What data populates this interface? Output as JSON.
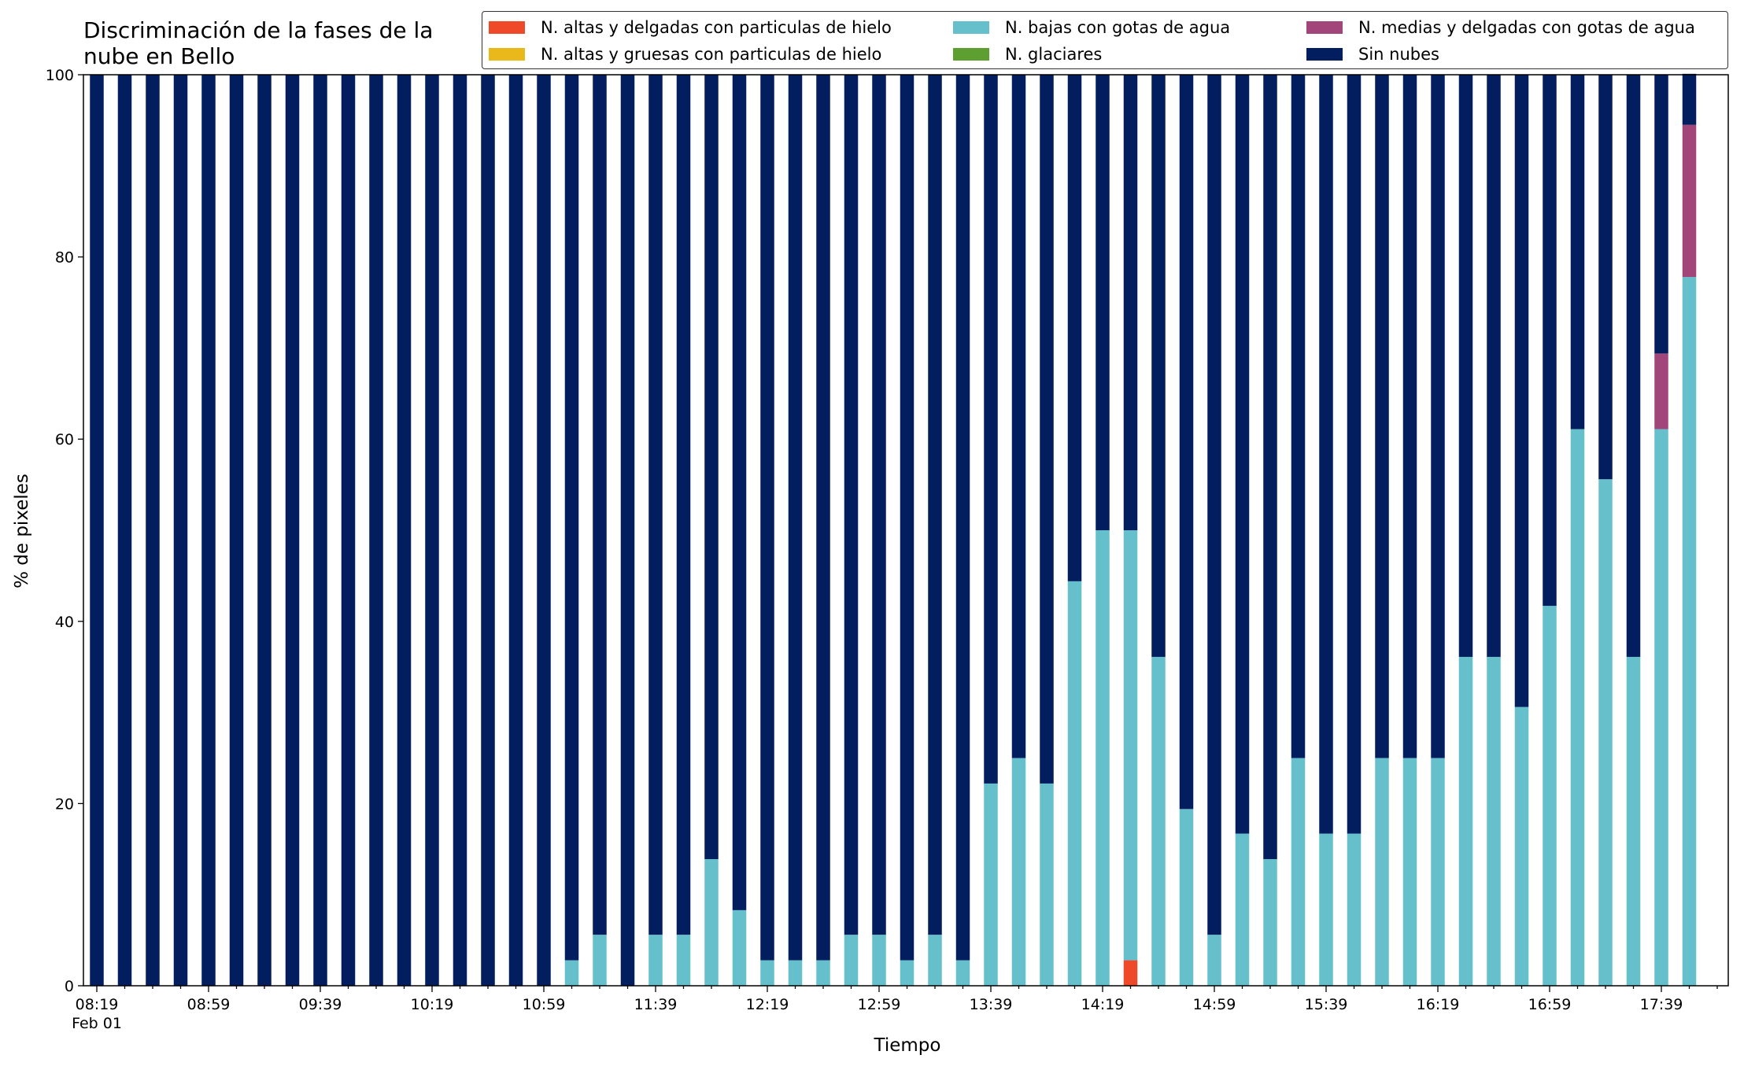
{
  "chart_data": {
    "type": "bar",
    "stacked": true,
    "title": "Discriminación de la fases de la nube en Bello",
    "xlabel": "Tiempo",
    "ylabel": "% de pixeles",
    "ylim": [
      0,
      100
    ],
    "yticks": [
      0,
      20,
      40,
      60,
      80,
      100
    ],
    "xticks": [
      "08:19",
      "08:59",
      "09:39",
      "10:19",
      "10:59",
      "11:39",
      "12:19",
      "12:59",
      "13:39",
      "14:19",
      "14:59",
      "15:39",
      "16:19",
      "16:59",
      "17:39"
    ],
    "date_label": "Feb 01",
    "legend_position": "top-right",
    "grid": false,
    "categories": [
      "08:19",
      "08:29",
      "08:39",
      "08:49",
      "08:59",
      "09:09",
      "09:19",
      "09:29",
      "09:39",
      "09:49",
      "09:59",
      "10:09",
      "10:19",
      "10:29",
      "10:39",
      "10:49",
      "10:59",
      "11:09",
      "11:19",
      "11:29",
      "11:39",
      "11:49",
      "11:59",
      "12:09",
      "12:19",
      "12:29",
      "12:39",
      "12:49",
      "12:59",
      "13:09",
      "13:19",
      "13:29",
      "13:39",
      "13:49",
      "13:59",
      "14:09",
      "14:19",
      "14:29",
      "14:39",
      "14:49",
      "14:59",
      "15:09",
      "15:19",
      "15:29",
      "15:39",
      "15:49",
      "15:59",
      "16:09",
      "16:19",
      "16:29",
      "16:39",
      "16:49",
      "16:59",
      "17:09",
      "17:19",
      "17:29",
      "17:39",
      "17:49"
    ],
    "series": [
      {
        "name": "N. altas y delgadas con particulas de hielo",
        "color": "#ee4a2a",
        "values": [
          0,
          0,
          0,
          0,
          0,
          0,
          0,
          0,
          0,
          0,
          0,
          0,
          0,
          0,
          0,
          0,
          0,
          0,
          0,
          0,
          0,
          0,
          0,
          0,
          0,
          0,
          0,
          0,
          0,
          0,
          0,
          0,
          0,
          0,
          0,
          0,
          0,
          2.8,
          0,
          0,
          0,
          0,
          0,
          0,
          0,
          0,
          0,
          0,
          0,
          0,
          0,
          0,
          0,
          0,
          0,
          0,
          0,
          0
        ]
      },
      {
        "name": "N. altas y gruesas con particulas de hielo",
        "color": "#e9b91b",
        "values": [
          0,
          0,
          0,
          0,
          0,
          0,
          0,
          0,
          0,
          0,
          0,
          0,
          0,
          0,
          0,
          0,
          0,
          0,
          0,
          0,
          0,
          0,
          0,
          0,
          0,
          0,
          0,
          0,
          0,
          0,
          0,
          0,
          0,
          0,
          0,
          0,
          0,
          0,
          0,
          0,
          0,
          0,
          0,
          0,
          0,
          0,
          0,
          0,
          0,
          0,
          0,
          0,
          0,
          0,
          0,
          0,
          0,
          0
        ]
      },
      {
        "name": "N. bajas con gotas de agua",
        "color": "#65c0cb",
        "values": [
          0,
          0,
          0,
          0,
          0,
          0,
          0,
          0,
          0,
          0,
          0,
          0,
          0,
          0,
          0,
          0,
          0,
          2.8,
          5.6,
          0,
          5.6,
          5.6,
          13.9,
          8.3,
          2.8,
          2.8,
          2.8,
          5.6,
          5.6,
          2.8,
          5.6,
          2.8,
          22.2,
          25,
          22.2,
          44.4,
          50,
          47.2,
          36.1,
          19.4,
          5.6,
          16.7,
          13.9,
          25,
          16.7,
          16.7,
          25,
          25,
          25,
          36.1,
          36.1,
          30.6,
          41.7,
          61.1,
          55.6,
          36.1,
          61.1,
          77.8
        ]
      },
      {
        "name": "N. glaciares",
        "color": "#5e9f32",
        "values": [
          0,
          0,
          0,
          0,
          0,
          0,
          0,
          0,
          0,
          0,
          0,
          0,
          0,
          0,
          0,
          0,
          0,
          0,
          0,
          0,
          0,
          0,
          0,
          0,
          0,
          0,
          0,
          0,
          0,
          0,
          0,
          0,
          0,
          0,
          0,
          0,
          0,
          0,
          0,
          0,
          0,
          0,
          0,
          0,
          0,
          0,
          0,
          0,
          0,
          0,
          0,
          0,
          0,
          0,
          0,
          0,
          0,
          0
        ]
      },
      {
        "name": "N. medias y delgadas con gotas de agua",
        "color": "#a2457b",
        "values": [
          0,
          0,
          0,
          0,
          0,
          0,
          0,
          0,
          0,
          0,
          0,
          0,
          0,
          0,
          0,
          0,
          0,
          0,
          0,
          0,
          0,
          0,
          0,
          0,
          0,
          0,
          0,
          0,
          0,
          0,
          0,
          0,
          0,
          0,
          0,
          0,
          0,
          0,
          0,
          0,
          0,
          0,
          0,
          0,
          0,
          0,
          0,
          0,
          0,
          0,
          0,
          0,
          0,
          0,
          0,
          0,
          8.3,
          16.7
        ]
      },
      {
        "name": "Sin nubes",
        "color": "#021e5f",
        "values": [
          100,
          100,
          100,
          100,
          100,
          100,
          100,
          100,
          100,
          100,
          100,
          100,
          100,
          100,
          100,
          100,
          100,
          97.2,
          94.4,
          100,
          94.4,
          94.4,
          86.1,
          91.7,
          97.2,
          97.2,
          97.2,
          94.4,
          94.4,
          97.2,
          94.4,
          97.2,
          77.8,
          75,
          77.8,
          55.6,
          50,
          50,
          63.9,
          80.6,
          94.4,
          83.3,
          86.1,
          75,
          83.3,
          83.3,
          75,
          75,
          75,
          63.9,
          63.9,
          69.4,
          58.3,
          38.9,
          44.4,
          63.9,
          30.6,
          5.6
        ]
      }
    ]
  }
}
